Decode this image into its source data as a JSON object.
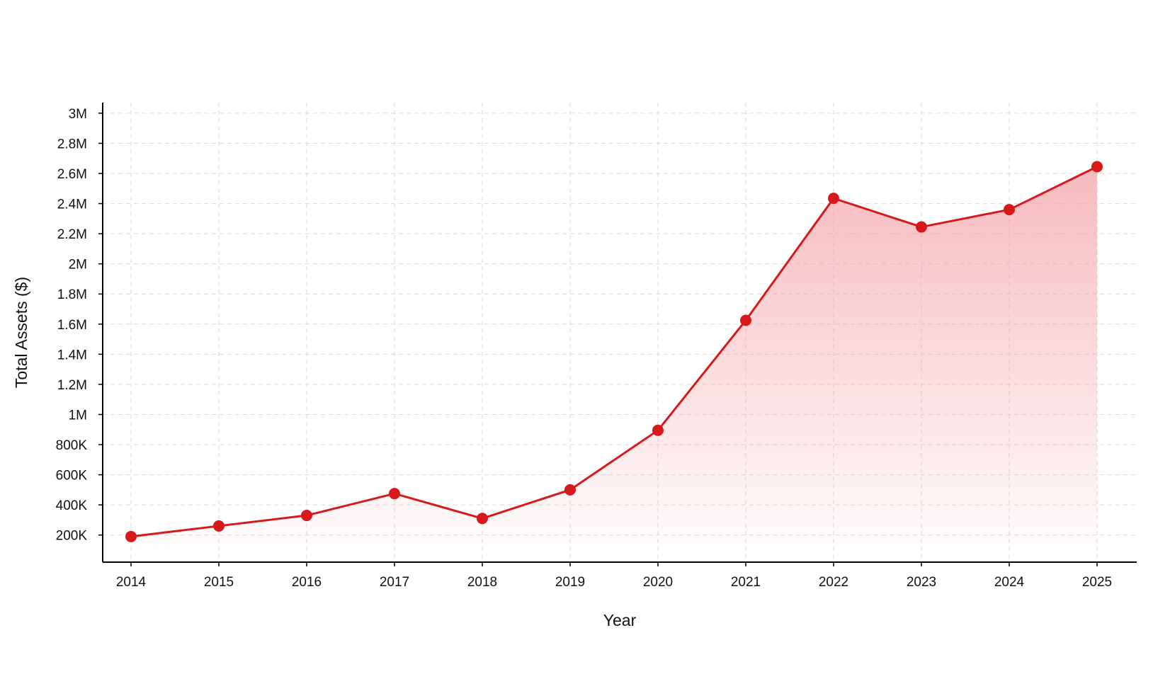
{
  "chart_data": {
    "type": "line",
    "title": "",
    "xlabel": "Year",
    "ylabel": "Total Assets ($)",
    "x": [
      "2014",
      "2015",
      "2016",
      "2017",
      "2018",
      "2019",
      "2020",
      "2021",
      "2022",
      "2023",
      "2024",
      "2025"
    ],
    "series": [
      {
        "values": [
          190000,
          260000,
          330000,
          475000,
          310000,
          500000,
          895000,
          1625000,
          2435000,
          2245000,
          2360000,
          2645000
        ],
        "color": "#d7191c"
      }
    ],
    "ylim": [
      20000,
      3070000
    ],
    "y_ticks": [
      200000,
      400000,
      600000,
      800000,
      1000000,
      1200000,
      1400000,
      1600000,
      1800000,
      2000000,
      2200000,
      2400000,
      2600000,
      2800000,
      3000000
    ],
    "y_tick_labels": [
      "200K",
      "400K",
      "600K",
      "800K",
      "1M",
      "1.2M",
      "1.4M",
      "1.6M",
      "1.8M",
      "2M",
      "2.2M",
      "2.4M",
      "2.6M",
      "2.8M",
      "3M"
    ],
    "grid": true,
    "area_fill": true,
    "fill_color": "#f4a3a8",
    "marker": "circle"
  }
}
